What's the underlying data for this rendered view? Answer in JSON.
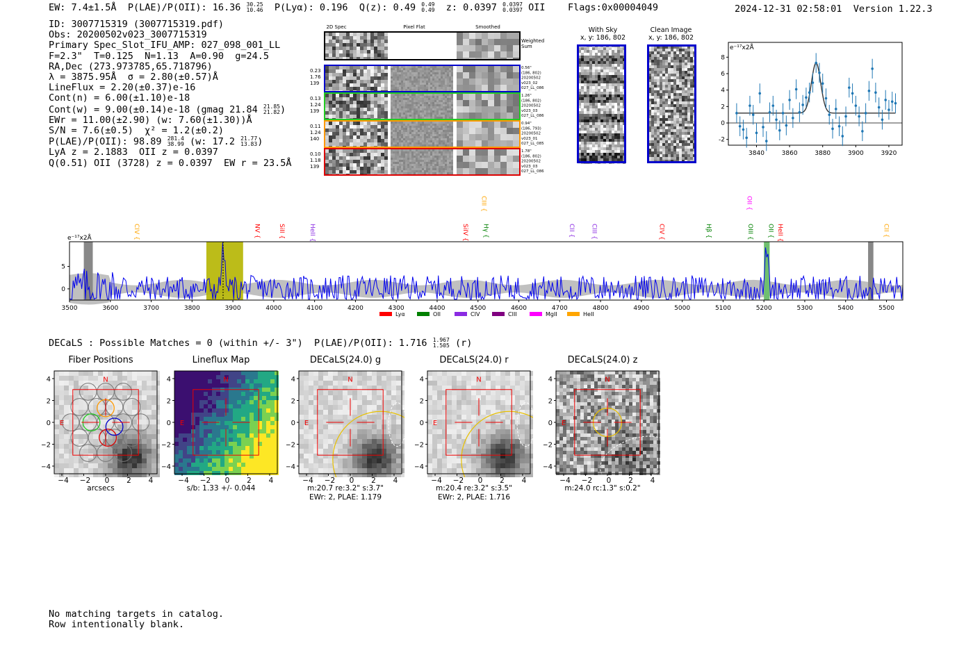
{
  "header": {
    "summary": "EW: 7.4±1.5Å  P(LAE)/P(OII): 16.36 ³⁰·²⁵/₁₀.₄₆  P(Lyα): 0.196  Q(z): 0.49  z: 0.0397  OII   Flags:0x00004049",
    "ew": "EW: 7.4±1.5Å",
    "plae": "P(LAE)/P(OII): 16.36",
    "plae_hi": "30.25",
    "plae_lo": "10.46",
    "plya": "P(Lyα): 0.196",
    "qz": "Q(z): 0.49",
    "qz_hi": "0.49",
    "qz_lo": "0.49",
    "z": "z: 0.0397",
    "z_hi": "0.0397",
    "z_lo": "0.0397",
    "line": "OII",
    "flags": "Flags:0x00004049",
    "datetime": "2024-12-31 02:58:01",
    "version": "Version 1.22.3"
  },
  "info": {
    "id": "ID: 3007715319 (3007715319.pdf)",
    "obs": "Obs: 20200502v023_3007715319",
    "primary": "Primary Spec_Slot_IFU_AMP: 027_098_001_LL",
    "fiber": "F=2.3\"  T=0.125  N=1.13  A=0.90  g=24.5",
    "radec": "RA,Dec (273.973785,65.718796)",
    "lambda": "λ = 3875.95Å  σ = 2.80(±0.57)Å",
    "lineflux": "LineFlux = 2.20(±0.37)e-16",
    "contn": "Cont(n) = 6.00(±1.10)e-18",
    "contw": "Cont(w) = 9.00(±0.14)e-18 (gmag 21.84",
    "contw_hi": "21.85",
    "contw_lo": "21.82",
    "ewr": "EWr = 11.00(±2.90) (w: 7.60(±1.30))Å",
    "sn": "S/N = 7.6(±0.5)  χ² = 1.2(±0.2)",
    "plae2": "P(LAE)/P(OII): 98.89",
    "plae2_hi": "281.4",
    "plae2_lo": "38.99",
    "plae2_w": "(w: 17.2",
    "plae2_w_hi": "21.77",
    "plae2_w_lo": "13.83",
    "lya": "LyA z = 2.1883  OII z = 0.0397",
    "q": "Q(0.51) OII (3728) z = 0.0397  EW r = 23.5Å"
  },
  "cutouts": {
    "col_headers": [
      "2D Spec",
      "Pixel Flat",
      "Smoothed"
    ],
    "weighted_sum": "Weighted Sum",
    "rows": [
      {
        "left": [
          "0.23",
          "1.76",
          "139"
        ],
        "right": [
          "0.56\"",
          "(186, 802)",
          "20200502",
          "v023_02",
          "027_LL_086"
        ],
        "color": "#0000cc"
      },
      {
        "left": [
          "0.13",
          "1.24",
          "139"
        ],
        "right": [
          "1.26\"",
          "(186, 802)",
          "20200502",
          "v023_03",
          "027_LL_086"
        ],
        "color": "#22cc22"
      },
      {
        "left": [
          "0.11",
          "1.24",
          "140"
        ],
        "right": [
          "0.94\"",
          "(186, 793)",
          "20200502",
          "v023_01",
          "027_LL_085"
        ],
        "color": "#ff9900"
      },
      {
        "left": [
          "0.10",
          "1.18",
          "139"
        ],
        "right": [
          "1.78\"",
          "(186, 802)",
          "20200502",
          "v023_03",
          "027_LL_086"
        ],
        "color": "#dd0000"
      }
    ]
  },
  "sky": {
    "title1": "With Sky",
    "title2": "x, y: 186, 802"
  },
  "clean": {
    "title1": "Clean Image",
    "title2": "x, y: 186, 802"
  },
  "colors": {
    "blue": "#0000ee",
    "fit": "#1f77b4",
    "grey": "#c0c0c0",
    "yellow": "#b5b500"
  },
  "chart_data": [
    {
      "type": "scatter",
      "ylabel": "e⁻¹⁷x2Å",
      "xlim": [
        3823,
        3928
      ],
      "ylim": [
        -2.7,
        9.8
      ],
      "xticks": [
        "3840",
        "3860",
        "3880",
        "3900",
        "3920"
      ],
      "yticks": [
        "-2",
        "0",
        "2",
        "4",
        "6",
        "8"
      ],
      "x": [
        3828,
        3830,
        3832,
        3834,
        3836,
        3838,
        3840,
        3842,
        3844,
        3846,
        3848,
        3850,
        3852,
        3854,
        3856,
        3858,
        3860,
        3862,
        3864,
        3866,
        3868,
        3870,
        3872,
        3874,
        3876,
        3878,
        3880,
        3882,
        3884,
        3886,
        3888,
        3890,
        3892,
        3894,
        3896,
        3898,
        3900,
        3902,
        3904,
        3906,
        3908,
        3910,
        3912,
        3914,
        3916,
        3918,
        3920,
        3922,
        3924
      ],
      "y": [
        1.2,
        -0.4,
        -0.8,
        -1.8,
        2.1,
        1.0,
        -1.2,
        3.6,
        -0.5,
        -2.2,
        1.3,
        2.1,
        0.4,
        -0.9,
        1.2,
        -0.3,
        2.8,
        0.6,
        4.1,
        1.3,
        2.2,
        3.1,
        3.7,
        4.9,
        7.3,
        6.1,
        4.8,
        3.0,
        1.0,
        -0.7,
        1.7,
        -0.4,
        -1.6,
        0.8,
        4.3,
        3.6,
        2.1,
        0.8,
        -1.0,
        1.2,
        3.9,
        6.6,
        3.7,
        1.9,
        0.4,
        2.8,
        1.6,
        2.6,
        2.4
      ],
      "fit_baseline": 1.2,
      "fit_peak": 7.3,
      "fit_center": 3876,
      "fit_sigma": 2.8
    },
    {
      "type": "line",
      "ylabel": "e⁻¹⁷x2Å",
      "xlim": [
        3500,
        5540
      ],
      "ylim": [
        -2.5,
        10.5
      ],
      "xticks": [
        "3500",
        "3600",
        "3700",
        "3800",
        "3900",
        "4000",
        "4100",
        "4200",
        "4300",
        "4400",
        "4500",
        "4600",
        "4700",
        "4800",
        "4900",
        "5000",
        "5100",
        "5200",
        "5300",
        "5400",
        "5500"
      ],
      "yticks": [
        "0",
        "5"
      ],
      "highlight": [
        3835,
        3925
      ],
      "peaks": [
        [
          3876,
          10.5
        ],
        [
          5207,
          9.4
        ]
      ],
      "legend": [
        {
          "label": "Lyα",
          "color": "#ff0000"
        },
        {
          "label": "OII",
          "color": "#008000"
        },
        {
          "label": "CIV",
          "color": "#8a2be2"
        },
        {
          "label": "CIII",
          "color": "#800080"
        },
        {
          "label": "MgII",
          "color": "#ff00ff"
        },
        {
          "label": "HeII",
          "color": "#ffa500"
        }
      ],
      "line_labels": [
        {
          "label": "CIV {",
          "x": 3655,
          "color": "#ffa500",
          "row": "low"
        },
        {
          "label": "NV {",
          "x": 3950,
          "color": "#ff0000",
          "row": "low"
        },
        {
          "label": "SiII {",
          "x": 4010,
          "color": "#ff0000",
          "row": "low"
        },
        {
          "label": "HeII {",
          "x": 4085,
          "color": "#8a2be2",
          "row": "low"
        },
        {
          "label": "SiIV {",
          "x": 4460,
          "color": "#ff0000",
          "row": "low"
        },
        {
          "label": "CIII {",
          "x": 4505,
          "color": "#ffa500",
          "row": "high"
        },
        {
          "label": "Hγ {",
          "x": 4510,
          "color": "#008000",
          "row": "low"
        },
        {
          "label": "CII {",
          "x": 4720,
          "color": "#8a2be2",
          "row": "low"
        },
        {
          "label": "CIII {",
          "x": 4775,
          "color": "#8a2be2",
          "row": "low"
        },
        {
          "label": "CIV {",
          "x": 4940,
          "color": "#ff0000",
          "row": "low"
        },
        {
          "label": "Hβ {",
          "x": 5055,
          "color": "#008000",
          "row": "low"
        },
        {
          "label": "OII {",
          "x": 5155,
          "color": "#ff00ff",
          "row": "high"
        },
        {
          "label": "OIII {",
          "x": 5157,
          "color": "#008000",
          "row": "low"
        },
        {
          "label": "OII {",
          "x": 5207,
          "color": "#008000",
          "row": "low"
        },
        {
          "label": "HeII {",
          "x": 5230,
          "color": "#ff0000",
          "row": "low"
        },
        {
          "label": "CII {",
          "x": 5490,
          "color": "#ffa500",
          "row": "low"
        }
      ]
    }
  ],
  "decals": {
    "summary": "DECaLS : Possible Matches = 0 (within +/- 3\")  P(LAE)/P(OII): 1.716",
    "hi": "1.967",
    "lo": "1.505",
    "band": "(r)"
  },
  "panels": [
    {
      "title": "Fiber Positions",
      "caption1": "arcsecs",
      "caption2": ""
    },
    {
      "title": "Lineflux Map",
      "caption1": "s/b: 1.33 +/- 0.044",
      "caption2": ""
    },
    {
      "title": "DECaLS(24.0) g",
      "caption1": "m:20.7  re:3.2\"  s:3.7\"",
      "caption2": "EWr: 2, PLAE: 1.179"
    },
    {
      "title": "DECaLS(24.0) r",
      "caption1": "m:20.4  re:3.2\"  s:3.5\"",
      "caption2": "EWr: 2, PLAE: 1.716"
    },
    {
      "title": "DECaLS(24.0) z",
      "caption1": "m:24.0 rc:1.3\"  s:0.2\"",
      "caption2": ""
    }
  ],
  "panel_ticks": [
    "4",
    "2",
    "0",
    "−2",
    "−4"
  ],
  "panel_xticks": [
    "−4",
    "−2",
    "0",
    "2",
    "4"
  ],
  "compass": {
    "n": "N",
    "e": "E"
  },
  "footer": {
    "line1": "No matching targets in catalog.",
    "line2": "Row intentionally blank."
  }
}
